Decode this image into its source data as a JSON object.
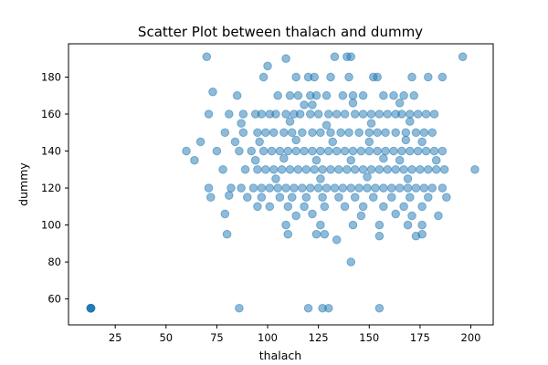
{
  "chart_data": {
    "type": "scatter",
    "title": "Scatter Plot between thalach and dummy",
    "xlabel": "thalach",
    "ylabel": "dummy",
    "xlim": [
      2,
      211
    ],
    "ylim": [
      46,
      198
    ],
    "x_ticks": [
      25,
      50,
      75,
      100,
      125,
      150,
      175,
      200
    ],
    "y_ticks": [
      60,
      80,
      100,
      120,
      140,
      160,
      180
    ],
    "grid": false,
    "legend": "none",
    "marker_color": "#1f77b4",
    "marker_alpha": 0.5,
    "points": [
      [
        13,
        55
      ],
      [
        13,
        55
      ],
      [
        13,
        55
      ],
      [
        13,
        55
      ],
      [
        13,
        55
      ],
      [
        13,
        55
      ],
      [
        70,
        191
      ],
      [
        196,
        191
      ],
      [
        100,
        186
      ],
      [
        109,
        190
      ],
      [
        133,
        191
      ],
      [
        139,
        191
      ],
      [
        141,
        191
      ],
      [
        98,
        180
      ],
      [
        114,
        180
      ],
      [
        120,
        180
      ],
      [
        123,
        180
      ],
      [
        131,
        180
      ],
      [
        140,
        180
      ],
      [
        152,
        180
      ],
      [
        154,
        180
      ],
      [
        171,
        180
      ],
      [
        179,
        180
      ],
      [
        186,
        180
      ],
      [
        73,
        172
      ],
      [
        85,
        170
      ],
      [
        105,
        170
      ],
      [
        111,
        170
      ],
      [
        115,
        170
      ],
      [
        121,
        170
      ],
      [
        124,
        170
      ],
      [
        129,
        170
      ],
      [
        137,
        170
      ],
      [
        142,
        170
      ],
      [
        147,
        170
      ],
      [
        157,
        170
      ],
      [
        162,
        170
      ],
      [
        167,
        170
      ],
      [
        172,
        170
      ],
      [
        118,
        165
      ],
      [
        122,
        165
      ],
      [
        142,
        166
      ],
      [
        165,
        166
      ],
      [
        71,
        160
      ],
      [
        81,
        160
      ],
      [
        88,
        160
      ],
      [
        94,
        160
      ],
      [
        97,
        160
      ],
      [
        101,
        160
      ],
      [
        104,
        160
      ],
      [
        109,
        160
      ],
      [
        113,
        160
      ],
      [
        116,
        160
      ],
      [
        121,
        160
      ],
      [
        125,
        160
      ],
      [
        130,
        160
      ],
      [
        134,
        160
      ],
      [
        138,
        160
      ],
      [
        143,
        160
      ],
      [
        147,
        160
      ],
      [
        151,
        160
      ],
      [
        155,
        160
      ],
      [
        159,
        160
      ],
      [
        163,
        160
      ],
      [
        166,
        160
      ],
      [
        170,
        160
      ],
      [
        174,
        160
      ],
      [
        178,
        160
      ],
      [
        182,
        160
      ],
      [
        87,
        155
      ],
      [
        111,
        156
      ],
      [
        129,
        154
      ],
      [
        151,
        155
      ],
      [
        170,
        156
      ],
      [
        79,
        150
      ],
      [
        88,
        150
      ],
      [
        95,
        150
      ],
      [
        99,
        150
      ],
      [
        103,
        150
      ],
      [
        108,
        150
      ],
      [
        112,
        150
      ],
      [
        117,
        150
      ],
      [
        122,
        150
      ],
      [
        126,
        150
      ],
      [
        131,
        150
      ],
      [
        136,
        150
      ],
      [
        140,
        150
      ],
      [
        145,
        150
      ],
      [
        150,
        150
      ],
      [
        154,
        150
      ],
      [
        158,
        150
      ],
      [
        163,
        150
      ],
      [
        168,
        150
      ],
      [
        173,
        150
      ],
      [
        177,
        150
      ],
      [
        181,
        150
      ],
      [
        67,
        145
      ],
      [
        84,
        145
      ],
      [
        96,
        145
      ],
      [
        114,
        146
      ],
      [
        132,
        145
      ],
      [
        150,
        145
      ],
      [
        168,
        146
      ],
      [
        176,
        145
      ],
      [
        60,
        140
      ],
      [
        75,
        140
      ],
      [
        86,
        140
      ],
      [
        92,
        140
      ],
      [
        98,
        140
      ],
      [
        102,
        140
      ],
      [
        106,
        140
      ],
      [
        110,
        140
      ],
      [
        114,
        140
      ],
      [
        118,
        140
      ],
      [
        122,
        140
      ],
      [
        126,
        140
      ],
      [
        130,
        140
      ],
      [
        134,
        140
      ],
      [
        138,
        140
      ],
      [
        142,
        140
      ],
      [
        146,
        140
      ],
      [
        150,
        140
      ],
      [
        154,
        140
      ],
      [
        158,
        140
      ],
      [
        162,
        140
      ],
      [
        166,
        140
      ],
      [
        170,
        140
      ],
      [
        174,
        140
      ],
      [
        178,
        140
      ],
      [
        182,
        140
      ],
      [
        186,
        140
      ],
      [
        64,
        135
      ],
      [
        94,
        135
      ],
      [
        108,
        136
      ],
      [
        124,
        135
      ],
      [
        141,
        135
      ],
      [
        157,
        136
      ],
      [
        165,
        135
      ],
      [
        183,
        135
      ],
      [
        78,
        130
      ],
      [
        89,
        130
      ],
      [
        95,
        130
      ],
      [
        99,
        130
      ],
      [
        103,
        130
      ],
      [
        107,
        130
      ],
      [
        111,
        130
      ],
      [
        115,
        130
      ],
      [
        119,
        130
      ],
      [
        123,
        130
      ],
      [
        127,
        130
      ],
      [
        131,
        130
      ],
      [
        135,
        130
      ],
      [
        139,
        130
      ],
      [
        143,
        130
      ],
      [
        147,
        130
      ],
      [
        151,
        130
      ],
      [
        155,
        130
      ],
      [
        159,
        130
      ],
      [
        163,
        130
      ],
      [
        167,
        130
      ],
      [
        171,
        130
      ],
      [
        175,
        130
      ],
      [
        179,
        130
      ],
      [
        183,
        130
      ],
      [
        187,
        130
      ],
      [
        202,
        130
      ],
      [
        104,
        125
      ],
      [
        126,
        125
      ],
      [
        149,
        126
      ],
      [
        169,
        125
      ],
      [
        71,
        120
      ],
      [
        82,
        120
      ],
      [
        87,
        120
      ],
      [
        93,
        120
      ],
      [
        97,
        120
      ],
      [
        101,
        120
      ],
      [
        105,
        120
      ],
      [
        109,
        120
      ],
      [
        113,
        120
      ],
      [
        117,
        120
      ],
      [
        121,
        120
      ],
      [
        125,
        120
      ],
      [
        129,
        120
      ],
      [
        133,
        120
      ],
      [
        137,
        120
      ],
      [
        141,
        120
      ],
      [
        145,
        120
      ],
      [
        149,
        120
      ],
      [
        153,
        120
      ],
      [
        157,
        120
      ],
      [
        161,
        120
      ],
      [
        165,
        120
      ],
      [
        169,
        120
      ],
      [
        173,
        120
      ],
      [
        177,
        120
      ],
      [
        181,
        120
      ],
      [
        186,
        120
      ],
      [
        72,
        115
      ],
      [
        81,
        116
      ],
      [
        90,
        115
      ],
      [
        97,
        115
      ],
      [
        106,
        115
      ],
      [
        112,
        115
      ],
      [
        119,
        115
      ],
      [
        127,
        115
      ],
      [
        135,
        115
      ],
      [
        143,
        115
      ],
      [
        152,
        115
      ],
      [
        161,
        115
      ],
      [
        170,
        115
      ],
      [
        179,
        115
      ],
      [
        188,
        115
      ],
      [
        95,
        110
      ],
      [
        101,
        110
      ],
      [
        110,
        110
      ],
      [
        118,
        110
      ],
      [
        128,
        110
      ],
      [
        138,
        110
      ],
      [
        147,
        110
      ],
      [
        157,
        110
      ],
      [
        167,
        110
      ],
      [
        176,
        110
      ],
      [
        79,
        106
      ],
      [
        114,
        105
      ],
      [
        122,
        106
      ],
      [
        146,
        105
      ],
      [
        163,
        106
      ],
      [
        171,
        105
      ],
      [
        184,
        105
      ],
      [
        109,
        100
      ],
      [
        126,
        100
      ],
      [
        142,
        100
      ],
      [
        155,
        100
      ],
      [
        169,
        100
      ],
      [
        176,
        100
      ],
      [
        80,
        95
      ],
      [
        110,
        95
      ],
      [
        124,
        95
      ],
      [
        128,
        95
      ],
      [
        155,
        94
      ],
      [
        173,
        94
      ],
      [
        176,
        95
      ],
      [
        134,
        92
      ],
      [
        141,
        80
      ],
      [
        86,
        55
      ],
      [
        120,
        55
      ],
      [
        127,
        55
      ],
      [
        130,
        55
      ],
      [
        155,
        55
      ]
    ]
  }
}
